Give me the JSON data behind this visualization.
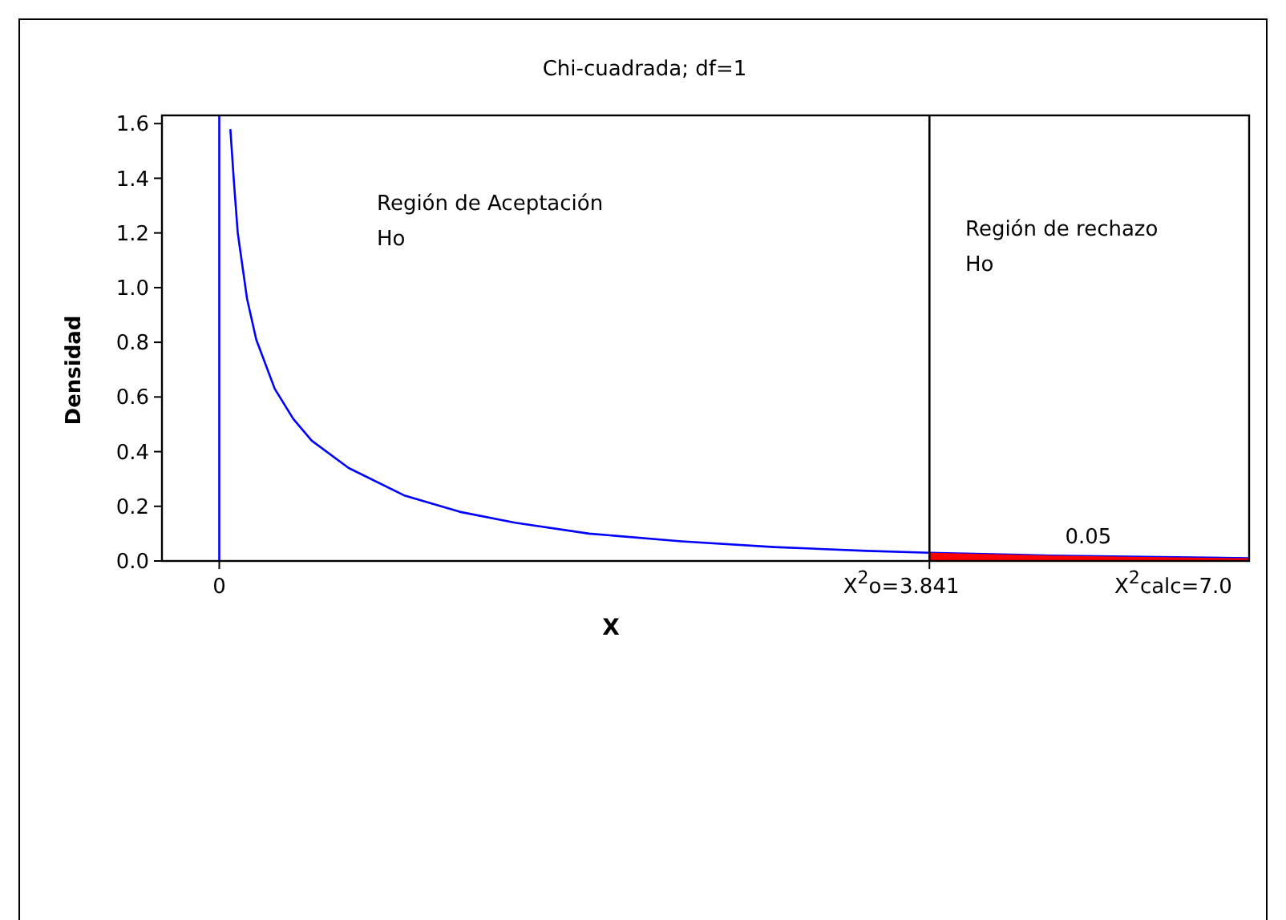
{
  "chart_data": {
    "type": "line",
    "title": "Chi-cuadrada; df=1",
    "xlabel": "X",
    "ylabel": "Densidad",
    "xlim": [
      -0.31,
      5.57
    ],
    "xticks": [
      0,
      3.841
    ],
    "ylim": [
      0,
      1.63
    ],
    "yticks": [
      {
        "value": 0,
        "label": "0.0"
      },
      {
        "value": 0.2,
        "label": "0.2"
      },
      {
        "value": 0.4,
        "label": "0.4"
      },
      {
        "value": 0.6,
        "label": "0.6"
      },
      {
        "value": 0.8,
        "label": "0.8"
      },
      {
        "value": 1,
        "label": "1.0"
      },
      {
        "value": 1.2,
        "label": "1.2"
      },
      {
        "value": 1.4,
        "label": "1.4"
      },
      {
        "value": 1.6,
        "label": "1.6"
      }
    ],
    "grid": false,
    "series": [
      {
        "color": "#0000ff",
        "x": [
          0.06,
          0.08,
          0.1,
          0.15,
          0.2,
          0.3,
          0.4,
          0.5,
          0.7,
          1.0,
          1.3,
          1.6,
          2.0,
          2.5,
          3.0,
          3.5,
          3.841,
          4.5,
          5.0,
          5.57
        ],
        "values": [
          1.58,
          1.38,
          1.2,
          0.96,
          0.81,
          0.63,
          0.52,
          0.44,
          0.34,
          0.24,
          0.18,
          0.14,
          0.1,
          0.072,
          0.051,
          0.037,
          0.03,
          0.02,
          0.015,
          0.01
        ]
      },
      {
        "type": "area",
        "color": "#ff0000",
        "x": [
          3.841,
          4.5,
          5.0,
          5.57
        ],
        "values": [
          0.03,
          0.02,
          0.015,
          0.01
        ]
      }
    ],
    "ref_lines": [
      {
        "axis": "x",
        "value": 0,
        "color": "#0000ff"
      },
      {
        "axis": "x",
        "value": 3.841,
        "color": "#000000"
      }
    ],
    "annotations": [
      "Región de Aceptación\nHo",
      "Región de rechazo\nHo",
      {
        "text": "0.05",
        "x": 4.7,
        "y": 0.03
      },
      "X$^{2}$calc=7.0",
      "X$^{2}$o="
    ]
  }
}
